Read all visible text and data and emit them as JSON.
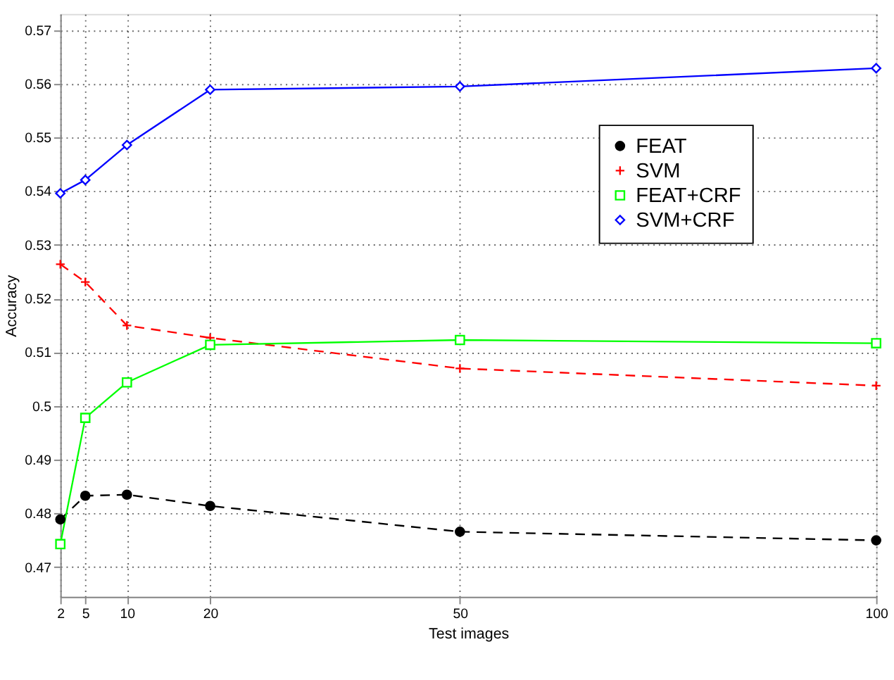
{
  "chart_data": {
    "type": "line",
    "xlabel": "Test images",
    "ylabel": "Accuracy",
    "x": [
      2,
      5,
      10,
      20,
      50,
      100
    ],
    "series": [
      {
        "name": "FEAT",
        "color": "#000000",
        "marker": "circle",
        "line_style": "dashed",
        "values": [
          0.4789,
          0.4833,
          0.4835,
          0.4814,
          0.4766,
          0.475
        ]
      },
      {
        "name": "SVM",
        "color": "#ff0000",
        "marker": "cross",
        "line_style": "dashed",
        "values": [
          0.5264,
          0.5231,
          0.515,
          0.5127,
          0.507,
          0.5038
        ]
      },
      {
        "name": "FEAT+CRF",
        "color": "#00ff00",
        "marker": "square",
        "line_style": "solid",
        "values": [
          0.4743,
          0.4978,
          0.5044,
          0.5114,
          0.5123,
          0.5117
        ]
      },
      {
        "name": "SVM+CRF",
        "color": "#0000ff",
        "marker": "diamond",
        "line_style": "solid",
        "values": [
          0.5396,
          0.5421,
          0.5486,
          0.5589,
          0.5595,
          0.5629
        ]
      }
    ],
    "xlim": [
      2,
      100
    ],
    "xticks": [
      2,
      5,
      10,
      20,
      50,
      100
    ],
    "ylim": [
      0.4645,
      0.573
    ],
    "yticks": [
      0.47,
      0.48,
      0.49,
      0.5,
      0.51,
      0.52,
      0.53,
      0.54,
      0.55,
      0.56,
      0.57
    ],
    "grid": true,
    "legend": "top right"
  }
}
